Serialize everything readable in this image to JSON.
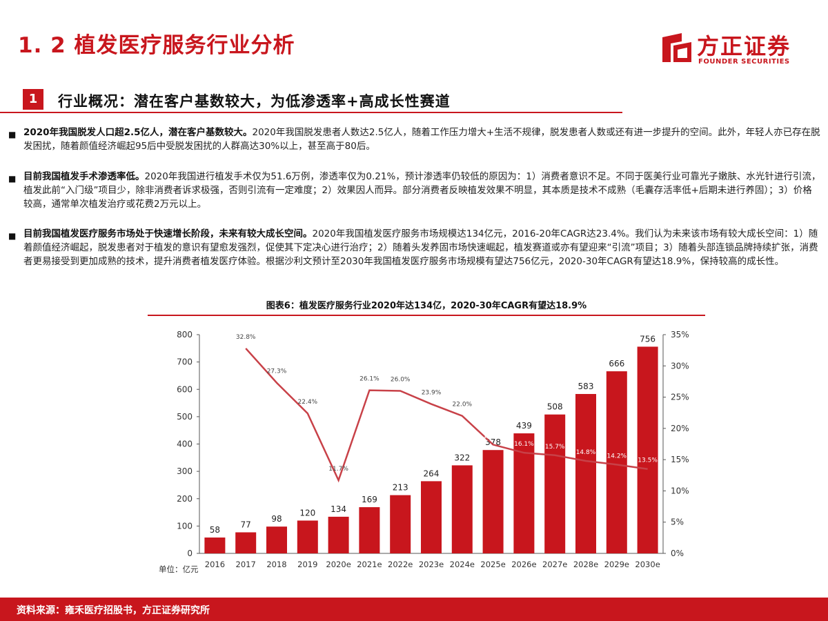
{
  "header": {
    "title": "1. 2 植发医疗服务行业分析",
    "logo_cn": "方正证券",
    "logo_en": "FOUNDER SECURITIES"
  },
  "section": {
    "number": "1",
    "title": "行业概况：潜在客户基数较大，为低渗透率+高成长性赛道"
  },
  "bullets": [
    {
      "lead": "2020年我国脱发人口超2.5亿人，潜在客户基数较大。",
      "text": "2020年我国脱发患者人数达2.5亿人，随着工作压力增大+生活不规律，脱发患者人数或还有进一步提升的空间。此外，年轻人亦已存在脱发困扰，随着颜值经济崛起95后中受脱发困扰的人群高达30%以上，甚至高于80后。"
    },
    {
      "lead": "目前我国植发手术渗透率低。",
      "text": "2020年我国进行植发手术仅为51.6万例，渗透率仅为0.21%，预计渗透率仍较低的原因为：1）消费者意识不足。不同于医美行业可靠光子嫩肤、水光针进行引流，植发此前“入门级”项目少，除非消费者诉求极强，否则引流有一定难度；2）效果因人而异。部分消费者反映植发效果不明显，其本质是技术不成熟（毛囊存活率低+后期未进行养固）；3）价格较高，通常单次植发治疗或花费2万元以上。"
    },
    {
      "lead": "目前我国植发医疗服务市场处于快速增长阶段，未来有较大成长空间。",
      "text": "2020年我国植发医疗服务市场规模达134亿元，2016-20年CAGR达23.4%。我们认为未来该市场有较大成长空间：1）随着颜值经济崛起，脱发患者对于植发的意识有望愈发强烈，促使其下定决心进行治疗；2）随着头发养固市场快速崛起，植发赛道或亦有望迎来“引流”项目；3）随着头部连锁品牌持续扩张，消费者更易接受到更加成熟的技术，提升消费者植发医疗体验。根据沙利文预计至2030年我国植发医疗服务市场规模有望达756亿元，2020-30年CAGR有望达18.9%，保持较高的成长性。"
    }
  ],
  "chart_data": {
    "type": "bar",
    "title": "图表6：植发医疗服务行业2020年达134亿，2020-30年CAGR有望达18.9%",
    "unit_label": "单位：亿元",
    "categories": [
      "2016",
      "2017",
      "2018",
      "2019",
      "2020e",
      "2021e",
      "2022e",
      "2023e",
      "2024e",
      "2025e",
      "2026e",
      "2027e",
      "2028e",
      "2029e",
      "2030e"
    ],
    "series": [
      {
        "type": "bar",
        "axis": "left",
        "values": [
          58,
          77,
          98,
          120,
          134,
          169,
          213,
          264,
          322,
          378,
          439,
          508,
          583,
          666,
          756
        ],
        "labels": [
          "58",
          "77",
          "98",
          "120",
          "134",
          "169",
          "213",
          "264",
          "322",
          "378",
          "439",
          "508",
          "583",
          "666",
          "756"
        ]
      },
      {
        "type": "line",
        "axis": "right",
        "values": [
          null,
          32.8,
          27.3,
          22.4,
          11.7,
          26.1,
          26.0,
          23.9,
          22.0,
          17.4,
          16.1,
          15.7,
          14.8,
          14.2,
          13.5
        ],
        "labels": [
          "",
          "32.8%",
          "27.3%",
          "22.4%",
          "11.7%",
          "26.1%",
          "26.0%",
          "23.9%",
          "22.0%",
          "17.4%",
          "16.1%",
          "15.7%",
          "14.8%",
          "14.2%",
          "13.5%"
        ]
      }
    ],
    "y_left": {
      "min": 0,
      "max": 800,
      "ticks": [
        "0",
        "100",
        "200",
        "300",
        "400",
        "500",
        "600",
        "700",
        "800"
      ]
    },
    "y_right": {
      "min": 0,
      "max": 35,
      "ticks": [
        "0%",
        "5%",
        "10%",
        "15%",
        "20%",
        "25%",
        "30%",
        "35%"
      ]
    },
    "grid": false,
    "colors": {
      "bar": "#c8161d",
      "line": "#c84148",
      "axis": "#555555"
    }
  },
  "footer": {
    "source": "资料来源：雍禾医疗招股书，方正证券研究所"
  }
}
